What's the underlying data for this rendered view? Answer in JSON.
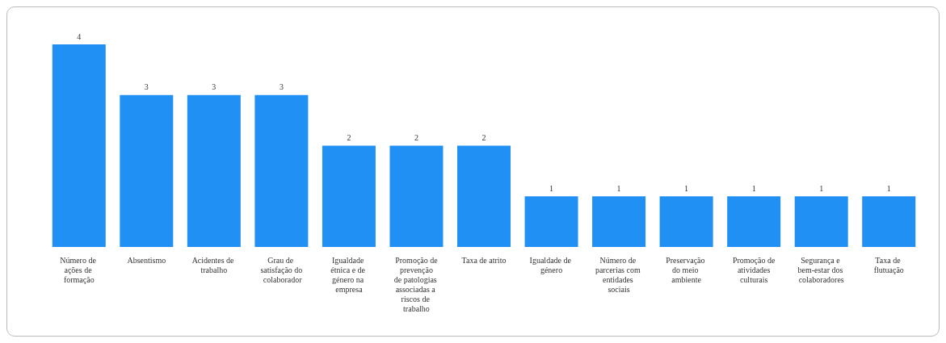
{
  "chart_data": {
    "type": "bar",
    "data_labels": true,
    "color": "#2190f5",
    "categories": [
      "Número de ações de formação",
      "Absentismo",
      "Acidentes de trabalho",
      "Grau de satisfação do colaborador",
      "Igualdade étnica e de género na empresa",
      "Promoção de prevenção de patologias associadas a riscos de trabalho",
      "Taxa de atrito",
      "Igualdade de género",
      "Número de parcerias com entidades sociais",
      "Preservação do meio ambiente",
      "Promoção de atividades culturais",
      "Segurança e bem-estar dos colaboradores",
      "Taxa de flutuação"
    ],
    "values": [
      4,
      3,
      3,
      3,
      2,
      2,
      2,
      1,
      1,
      1,
      1,
      1,
      1
    ]
  }
}
